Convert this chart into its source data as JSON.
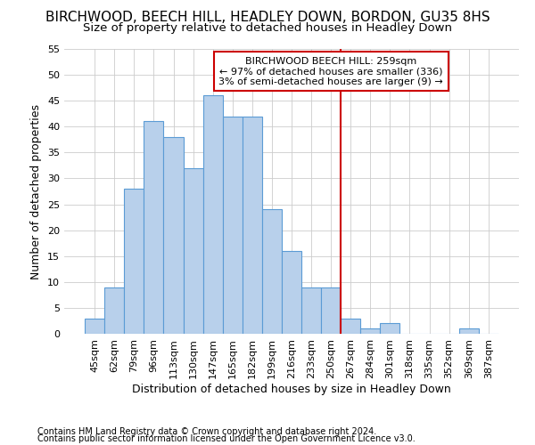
{
  "title": "BIRCHWOOD, BEECH HILL, HEADLEY DOWN, BORDON, GU35 8HS",
  "subtitle": "Size of property relative to detached houses in Headley Down",
  "xlabel": "Distribution of detached houses by size in Headley Down",
  "ylabel": "Number of detached properties",
  "footnote1": "Contains HM Land Registry data © Crown copyright and database right 2024.",
  "footnote2": "Contains public sector information licensed under the Open Government Licence v3.0.",
  "bar_labels": [
    "45sqm",
    "62sqm",
    "79sqm",
    "96sqm",
    "113sqm",
    "130sqm",
    "147sqm",
    "165sqm",
    "182sqm",
    "199sqm",
    "216sqm",
    "233sqm",
    "250sqm",
    "267sqm",
    "284sqm",
    "301sqm",
    "318sqm",
    "335sqm",
    "352sqm",
    "369sqm",
    "387sqm"
  ],
  "bar_values": [
    3,
    9,
    28,
    41,
    38,
    32,
    46,
    42,
    42,
    24,
    16,
    9,
    9,
    3,
    1,
    2,
    0,
    0,
    0,
    1,
    0
  ],
  "bar_color": "#b8d0eb",
  "bar_edge_color": "#5b9bd5",
  "vline_x": 12.5,
  "vline_color": "#cc0000",
  "annotation_text": "BIRCHWOOD BEECH HILL: 259sqm\n← 97% of detached houses are smaller (336)\n3% of semi-detached houses are larger (9) →",
  "annotation_box_color": "#cc0000",
  "ylim": [
    0,
    55
  ],
  "yticks": [
    0,
    5,
    10,
    15,
    20,
    25,
    30,
    35,
    40,
    45,
    50,
    55
  ],
  "bg_color": "#ffffff",
  "grid_color": "#cccccc",
  "title_fontsize": 11,
  "subtitle_fontsize": 9.5,
  "axis_label_fontsize": 9,
  "tick_fontsize": 8,
  "footnote_fontsize": 7,
  "annotation_fontsize": 8
}
